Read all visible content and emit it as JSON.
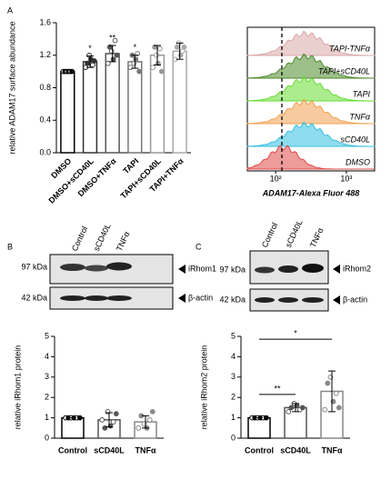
{
  "chart_data": [
    {
      "type": "bar",
      "label": "A",
      "y_label": "relative ADAM17 surface abundance",
      "categories": [
        "DMSO",
        "DMSO+sCD40L",
        "DMSO+TNFα",
        "TAPI",
        "TAPI+sCD40L",
        "TAPI+TNFα"
      ],
      "values": [
        1.0,
        1.12,
        1.22,
        1.12,
        1.2,
        1.25
      ],
      "errors": [
        0.02,
        0.07,
        0.1,
        0.08,
        0.12,
        0.1
      ],
      "points": [
        [
          1.0,
          1.0,
          1.0,
          1.0,
          1.0,
          1.0
        ],
        [
          1.05,
          1.1,
          1.2,
          1.15,
          1.08,
          1.13
        ],
        [
          1.1,
          1.3,
          1.25,
          1.15,
          1.38,
          1.2
        ],
        [
          1.05,
          1.2,
          1.1,
          1.15,
          1.22,
          1.0
        ],
        [
          1.05,
          1.3,
          1.2,
          1.1,
          1.28,
          1.0
        ],
        [
          1.15,
          1.3,
          1.35,
          1.2,
          1.25,
          1.3
        ]
      ],
      "annotations": [
        null,
        "*",
        "**",
        "*",
        null,
        null
      ],
      "colors": [
        "#000000",
        "#333333",
        "#555555",
        "#777777",
        "#999999",
        "#aaaaaa"
      ],
      "ylim": [
        0,
        1.6
      ],
      "yticks": [
        {
          "value": 0,
          "label": "0.0"
        },
        0.4,
        0.8,
        1.2,
        1.6
      ]
    },
    {
      "type": "bar",
      "y_label": "relative iRhom1 protein",
      "categories": [
        "Control",
        "sCD40L",
        "TNFα"
      ],
      "values": [
        1.0,
        0.9,
        0.8
      ],
      "errors": [
        0,
        0.35,
        0.3
      ],
      "points": [
        [
          1,
          1,
          1,
          1,
          1,
          1
        ],
        [
          0.9,
          0.5,
          1.3,
          0.6,
          0.8,
          1.2
        ],
        [
          0.5,
          1.1,
          0.7,
          0.5,
          0.9,
          1.3
        ]
      ],
      "colors": [
        "#000000",
        "#555555",
        "#888888"
      ],
      "ylim": [
        0,
        5
      ],
      "yticks": [
        0,
        1,
        2,
        3,
        4,
        5
      ]
    },
    {
      "type": "bar",
      "y_label": "relative iRhom2 protein",
      "categories": [
        "Control",
        "sCD40L",
        "TNFα"
      ],
      "values": [
        1.0,
        1.5,
        2.3
      ],
      "errors": [
        0,
        0.2,
        1.0
      ],
      "points": [
        [
          1,
          1,
          1,
          1,
          1,
          1
        ],
        [
          1.3,
          1.5,
          1.7,
          1.6,
          1.4,
          1.5
        ],
        [
          1.4,
          2.7,
          3.0,
          1.8,
          2.2,
          1.5
        ]
      ],
      "comparisons": [
        {
          "pair": [
            0,
            1
          ],
          "text": "**"
        },
        {
          "pair": [
            0,
            2
          ],
          "text": "*"
        }
      ],
      "colors": [
        "#000000",
        "#555555",
        "#888888"
      ],
      "ylim": [
        0,
        5
      ],
      "yticks": [
        0,
        1,
        2,
        3,
        4,
        5
      ]
    }
  ],
  "flow": {
    "xlabel": "ADAM17-Alexa Fluor 488",
    "xlim": [
      1.6,
      3.4
    ],
    "xticks": [
      {
        "value": 2,
        "label": "10²"
      },
      {
        "value": 3,
        "label": "10³"
      }
    ],
    "series": [
      {
        "name": "TAPI-TNFα",
        "color": "#d9a8a8"
      },
      {
        "name": "TAPI+sCD40L",
        "color": "#4c8a2a"
      },
      {
        "name": "TAPI",
        "color": "#66dd33"
      },
      {
        "name": "TNFα",
        "color": "#f0a050"
      },
      {
        "name": "sCD40L",
        "color": "#33c0e0"
      },
      {
        "name": "DMSO",
        "color": "#e04848"
      }
    ]
  },
  "blots": [
    {
      "label": "B",
      "lanes": [
        "Control",
        "sCD40L",
        "TNFα"
      ],
      "markers": [
        "97 kDa",
        "42 kDa"
      ],
      "proteins": [
        "iRhom1",
        "β-actin"
      ]
    },
    {
      "label": "C",
      "lanes": [
        "Control",
        "sCD40L",
        "TNFα"
      ],
      "markers": [
        "97 kDa",
        "42 kDa"
      ],
      "proteins": [
        "iRhom2",
        "β-actin"
      ]
    }
  ]
}
